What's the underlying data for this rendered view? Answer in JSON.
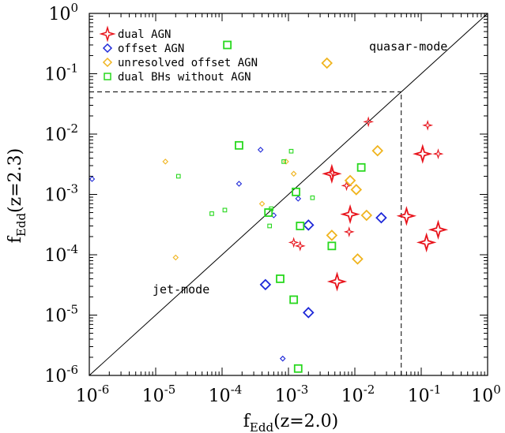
{
  "chart_data": {
    "type": "scatter",
    "xlabel": "f_Edd(z=2.0)",
    "ylabel": "f_Edd(z=2.3)",
    "x_axis": {
      "scale": "log",
      "range": [
        1e-06,
        1
      ],
      "ticks": [
        {
          "base": "10",
          "exp": "-6",
          "value": 1e-06
        },
        {
          "base": "10",
          "exp": "-5",
          "value": 1e-05
        },
        {
          "base": "10",
          "exp": "-4",
          "value": 0.0001
        },
        {
          "base": "10",
          "exp": "-3",
          "value": 0.001
        },
        {
          "base": "10",
          "exp": "-2",
          "value": 0.01
        },
        {
          "base": "10",
          "exp": "-1",
          "value": 0.1
        },
        {
          "base": "10",
          "exp": "0",
          "value": 1
        }
      ]
    },
    "y_axis": {
      "scale": "log",
      "range": [
        1e-06,
        1
      ],
      "ticks": [
        {
          "base": "10",
          "exp": "-6",
          "value": 1e-06
        },
        {
          "base": "10",
          "exp": "-5",
          "value": 1e-05
        },
        {
          "base": "10",
          "exp": "-4",
          "value": 0.0001
        },
        {
          "base": "10",
          "exp": "-3",
          "value": 0.001
        },
        {
          "base": "10",
          "exp": "-2",
          "value": 0.01
        },
        {
          "base": "10",
          "exp": "-1",
          "value": 0.1
        },
        {
          "base": "10",
          "exp": "0",
          "value": 1
        }
      ]
    },
    "annotations": [
      {
        "text": "quasar-mode",
        "x": 0.13,
        "y": 0.08
      },
      {
        "text": "jet-mode",
        "x": 1.4e-05,
        "y": 3e-05
      }
    ],
    "reference_lines": [
      {
        "type": "one-to-one",
        "style": "solid"
      },
      {
        "type": "horizontal",
        "y": 0.05,
        "x_from": 1e-06,
        "x_to": 0.05,
        "style": "dashed"
      },
      {
        "type": "vertical",
        "x": 0.05,
        "y_from": 1e-06,
        "y_to": 0.05,
        "style": "dashed"
      }
    ],
    "legend": {
      "position": "top-left",
      "entries": [
        {
          "label": "dual AGN",
          "marker": "star",
          "color": "#e8141c"
        },
        {
          "label": "offset AGN",
          "marker": "diamond",
          "color": "#1e28d8"
        },
        {
          "label": "unresolved offset AGN",
          "marker": "diamond",
          "color": "#f0b41e"
        },
        {
          "label": "dual BHs without AGN",
          "marker": "square",
          "color": "#28d81e"
        }
      ]
    },
    "series": [
      {
        "name": "dual AGN",
        "marker": "star",
        "color": "#e8141c",
        "points": [
          {
            "x": 0.0045,
            "y": 0.0022,
            "size": "large"
          },
          {
            "x": 0.0046,
            "y": 0.0023,
            "size": "small"
          },
          {
            "x": 0.0085,
            "y": 0.00047,
            "size": "large"
          },
          {
            "x": 0.0054,
            "y": 3.6e-05,
            "size": "large"
          },
          {
            "x": 0.06,
            "y": 0.00044,
            "size": "large"
          },
          {
            "x": 0.12,
            "y": 0.00016,
            "size": "large"
          },
          {
            "x": 0.18,
            "y": 0.00026,
            "size": "large"
          },
          {
            "x": 0.105,
            "y": 0.0047,
            "size": "large"
          },
          {
            "x": 0.125,
            "y": 0.014,
            "size": "small"
          },
          {
            "x": 0.18,
            "y": 0.0047,
            "size": "small"
          },
          {
            "x": 0.016,
            "y": 0.016,
            "size": "small"
          },
          {
            "x": 0.0075,
            "y": 0.0014,
            "size": "small"
          },
          {
            "x": 0.0082,
            "y": 0.00024,
            "size": "small"
          },
          {
            "x": 0.0012,
            "y": 0.00016,
            "size": "small"
          },
          {
            "x": 0.0015,
            "y": 0.00014,
            "size": "small"
          }
        ]
      },
      {
        "name": "offset AGN",
        "marker": "diamond",
        "color": "#1e28d8",
        "points": [
          {
            "x": 1.1e-06,
            "y": 0.0018,
            "size": "small"
          },
          {
            "x": 0.00038,
            "y": 0.0055,
            "size": "small"
          },
          {
            "x": 0.00018,
            "y": 0.0015,
            "size": "small"
          },
          {
            "x": 0.0006,
            "y": 0.00045,
            "size": "small"
          },
          {
            "x": 0.0014,
            "y": 0.00085,
            "size": "small"
          },
          {
            "x": 0.002,
            "y": 0.00031,
            "size": "large"
          },
          {
            "x": 0.025,
            "y": 0.00041,
            "size": "large"
          },
          {
            "x": 0.00045,
            "y": 3.2e-05,
            "size": "large"
          },
          {
            "x": 0.002,
            "y": 1.1e-05,
            "size": "large"
          },
          {
            "x": 0.00082,
            "y": 1.9e-06,
            "size": "small"
          }
        ]
      },
      {
        "name": "unresolved offset AGN",
        "marker": "diamond",
        "color": "#f0b41e",
        "points": [
          {
            "x": 1.4e-05,
            "y": 0.0035,
            "size": "small"
          },
          {
            "x": 2e-05,
            "y": 9e-05,
            "size": "small"
          },
          {
            "x": 0.0004,
            "y": 0.0007,
            "size": "small"
          },
          {
            "x": 0.00092,
            "y": 0.0035,
            "size": "small"
          },
          {
            "x": 0.0012,
            "y": 0.0022,
            "size": "small"
          },
          {
            "x": 0.0038,
            "y": 0.15,
            "size": "large"
          },
          {
            "x": 0.022,
            "y": 0.0053,
            "size": "large"
          },
          {
            "x": 0.0085,
            "y": 0.0017,
            "size": "large"
          },
          {
            "x": 0.0105,
            "y": 0.0012,
            "size": "large"
          },
          {
            "x": 0.015,
            "y": 0.00045,
            "size": "large"
          },
          {
            "x": 0.0045,
            "y": 0.00021,
            "size": "large"
          },
          {
            "x": 0.011,
            "y": 8.5e-05,
            "size": "large"
          }
        ]
      },
      {
        "name": "dual BHs without AGN",
        "marker": "square",
        "color": "#28d81e",
        "points": [
          {
            "x": 0.00012,
            "y": 0.3,
            "size": "large"
          },
          {
            "x": 0.00018,
            "y": 0.0065,
            "size": "large"
          },
          {
            "x": 0.0013,
            "y": 0.0011,
            "size": "large"
          },
          {
            "x": 0.0005,
            "y": 0.0005,
            "size": "large"
          },
          {
            "x": 0.0015,
            "y": 0.0003,
            "size": "large"
          },
          {
            "x": 0.0045,
            "y": 0.00014,
            "size": "large"
          },
          {
            "x": 0.0125,
            "y": 0.0028,
            "size": "large"
          },
          {
            "x": 0.00075,
            "y": 4e-05,
            "size": "large"
          },
          {
            "x": 0.0012,
            "y": 1.8e-05,
            "size": "large"
          },
          {
            "x": 0.0014,
            "y": 1.3e-06,
            "size": "large"
          },
          {
            "x": 2.2e-05,
            "y": 0.002,
            "size": "small"
          },
          {
            "x": 7e-05,
            "y": 0.00048,
            "size": "small"
          },
          {
            "x": 0.00011,
            "y": 0.00055,
            "size": "small"
          },
          {
            "x": 0.00055,
            "y": 0.00058,
            "size": "small"
          },
          {
            "x": 0.00052,
            "y": 0.0003,
            "size": "small"
          },
          {
            "x": 0.00085,
            "y": 0.0035,
            "size": "small"
          },
          {
            "x": 0.0011,
            "y": 0.0052,
            "size": "small"
          },
          {
            "x": 0.0023,
            "y": 0.00088,
            "size": "small"
          }
        ]
      }
    ]
  }
}
